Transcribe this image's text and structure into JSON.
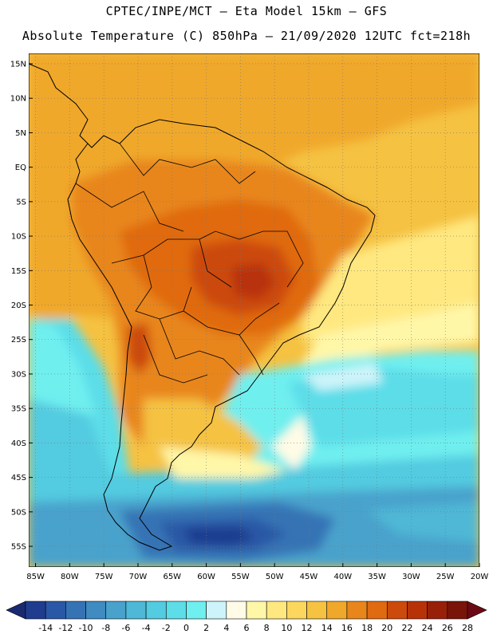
{
  "header": {
    "title_line1": "CPTEC/INPE/MCT –  Eta Model 15km – GFS",
    "title_line2": "Absolute Temperature (C) 850hPa – 21/09/2020 12UTC fct=218h"
  },
  "map": {
    "lat_labels": [
      "15N",
      "10N",
      "5N",
      "EQ",
      "5S",
      "10S",
      "15S",
      "20S",
      "25S",
      "30S",
      "35S",
      "40S",
      "45S",
      "50S",
      "55S"
    ],
    "lat_values": [
      15,
      10,
      5,
      0,
      -5,
      -10,
      -15,
      -20,
      -25,
      -30,
      -35,
      -40,
      -45,
      -50,
      -55
    ],
    "lon_labels": [
      "85W",
      "80W",
      "75W",
      "70W",
      "65W",
      "60W",
      "55W",
      "50W",
      "45W",
      "40W",
      "35W",
      "30W",
      "25W",
      "20W"
    ],
    "lon_values": [
      -85,
      -80,
      -75,
      -70,
      -65,
      -60,
      -55,
      -50,
      -45,
      -40,
      -35,
      -30,
      -25,
      -20
    ],
    "lat_range": [
      -58,
      16.5
    ],
    "lon_range": [
      -86,
      -20
    ]
  },
  "colorbar": {
    "labels": [
      "-14",
      "-12",
      "-10",
      "-8",
      "-6",
      "-4",
      "-2",
      "0",
      "2",
      "4",
      "6",
      "8",
      "10",
      "12",
      "14",
      "16",
      "18",
      "20",
      "22",
      "24",
      "26",
      "28"
    ],
    "colors": [
      "#1f3c8f",
      "#2a58a6",
      "#3673b5",
      "#3f8bc2",
      "#48a2cc",
      "#4fb8d6",
      "#53cbe0",
      "#5cdde8",
      "#6fefef",
      "#cdf4fa",
      "#fffbe6",
      "#fff7a8",
      "#ffe880",
      "#fcd75e",
      "#f5c242",
      "#f0a82a",
      "#e8861c",
      "#e06a10",
      "#cc4a0c",
      "#b83208",
      "#982008",
      "#7a1408"
    ],
    "low_arrow_color": "#1a2a70",
    "high_arrow_color": "#6b0a14"
  }
}
